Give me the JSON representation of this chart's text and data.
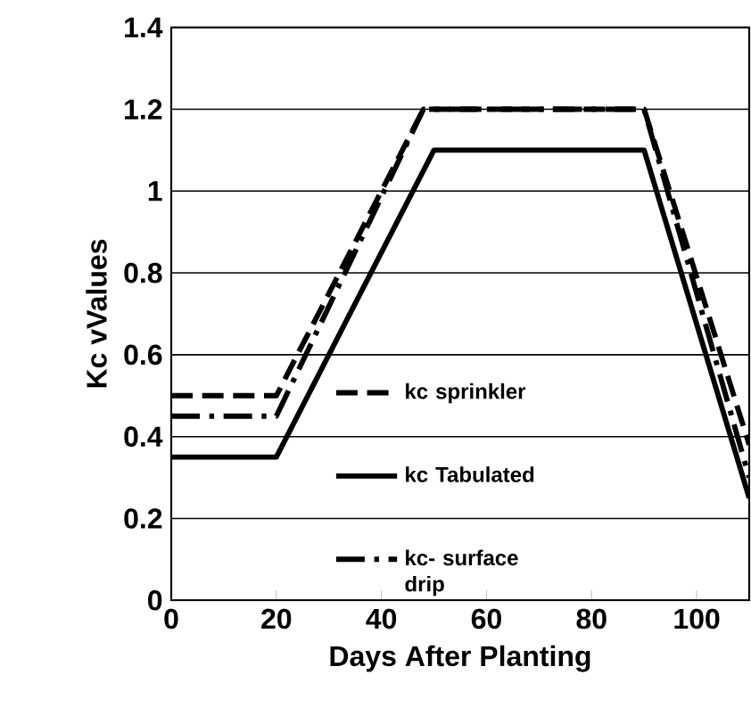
{
  "chart_data": {
    "type": "line",
    "xlabel": "Days After Planting",
    "ylabel": "Kc vValues",
    "xlim": [
      0,
      110
    ],
    "xticks": [
      0,
      20,
      40,
      60,
      80,
      100
    ],
    "ylim": [
      0,
      1.4
    ],
    "yticks": [
      0,
      0.2,
      0.4,
      0.6,
      0.8,
      1,
      1.2,
      1.4
    ],
    "grid": "y",
    "legend": "left",
    "marker": "none",
    "series": [
      {
        "name": "kc sprinkler",
        "color": "#000000",
        "line_style": "dashed",
        "x": [
          0,
          20,
          48,
          90,
          110
        ],
        "values": [
          0.5,
          0.5,
          1.2,
          1.2,
          0.38
        ]
      },
      {
        "name": "kc Tabulated",
        "color": "#000000",
        "line_style": "solid",
        "x": [
          0,
          20,
          50,
          90,
          110
        ],
        "values": [
          0.35,
          0.35,
          1.1,
          1.1,
          0.25
        ]
      },
      {
        "name": "kc- surface drip",
        "color": "#000000",
        "line_style": "dashdot",
        "x": [
          0,
          20,
          48,
          90,
          110
        ],
        "values": [
          0.45,
          0.45,
          1.2,
          1.2,
          0.3
        ]
      }
    ]
  }
}
